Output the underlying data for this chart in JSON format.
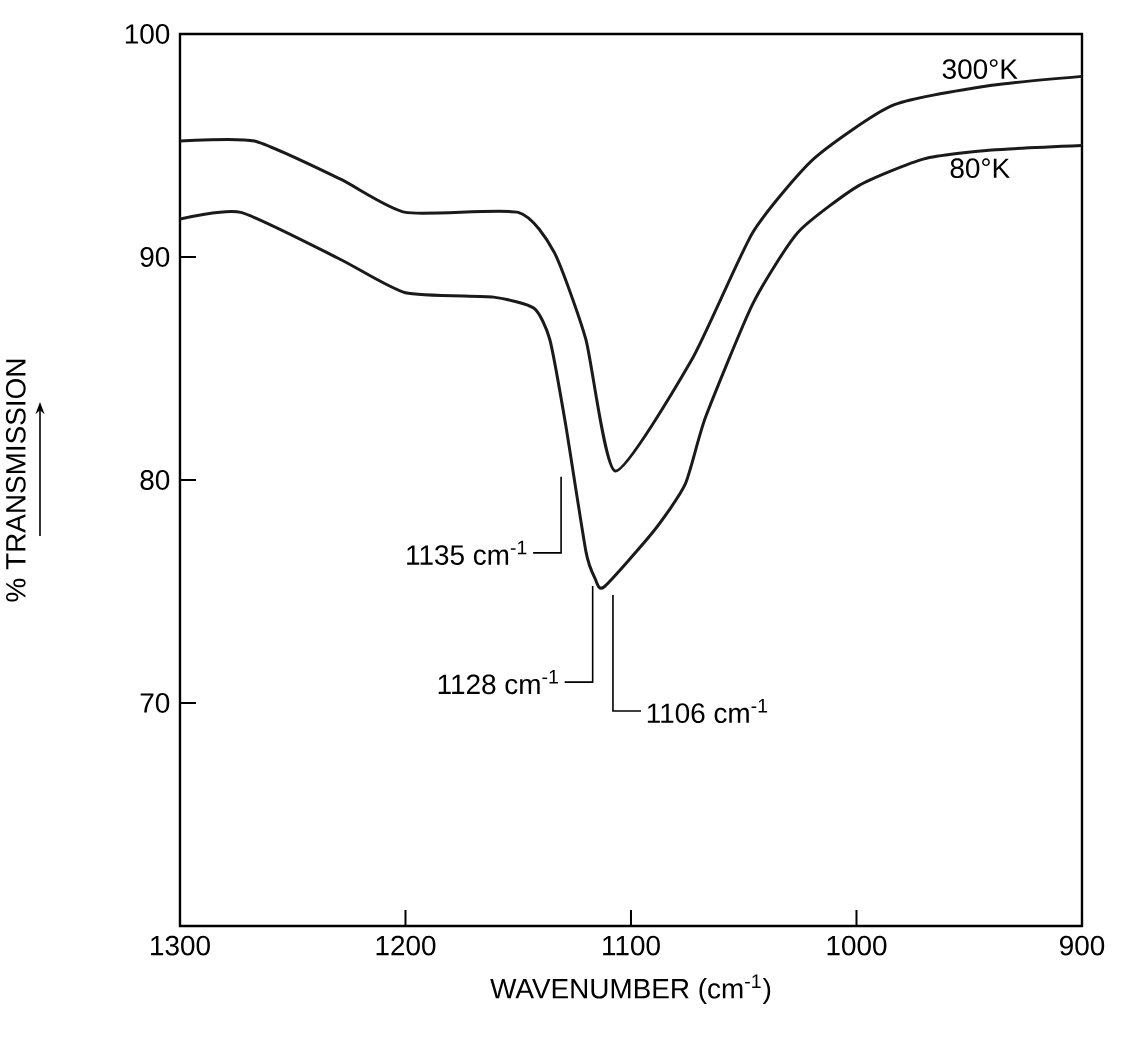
{
  "chart_data": {
    "type": "line",
    "xlabel": "WAVENUMBER (cm$^{-1}$)",
    "ylabel": "% TRANSMISSION",
    "xlim": [
      1300,
      900
    ],
    "ylim": [
      60,
      100
    ],
    "xticks": [
      1300,
      1200,
      1100,
      1000,
      900
    ],
    "yticks": [
      70,
      80,
      90,
      100
    ],
    "grid": false,
    "legend": false,
    "marker": "none",
    "line_style": "solid",
    "series": [
      {
        "name": "300°K",
        "color": "#1a1a1a",
        "x": [
          1300,
          1267,
          1229,
          1200,
          1150,
          1134,
          1120,
          1107,
          1073,
          1046,
          1019,
          984,
          940,
          900
        ],
        "values": [
          95.2,
          95.2,
          93.5,
          92.0,
          92.0,
          90.2,
          86.3,
          80.4,
          85.4,
          91.1,
          94.4,
          96.8,
          97.7,
          98.1
        ]
      },
      {
        "name": "80°K",
        "color": "#1a1a1a",
        "x": [
          1300,
          1273,
          1229,
          1200,
          1161,
          1143,
          1136,
          1129,
          1120,
          1116,
          1112,
          1090,
          1076,
          1067,
          1046,
          1026,
          999,
          970,
          940,
          900
        ],
        "values": [
          91.7,
          92.0,
          89.9,
          88.4,
          88.2,
          87.7,
          86.3,
          82.5,
          76.8,
          75.6,
          75.2,
          77.7,
          79.8,
          82.8,
          87.9,
          91.1,
          93.2,
          94.4,
          94.8,
          95.0
        ]
      }
    ],
    "annotations": [
      {
        "text": "1135 cm$^{-1}$",
        "x": 1131,
        "y": 80.5
      },
      {
        "text": "1128 cm$^{-1}$",
        "x": 1117,
        "y": 75.6
      },
      {
        "text": "1106 cm$^{-1}$",
        "x": 1108,
        "y": 75.2
      }
    ]
  }
}
